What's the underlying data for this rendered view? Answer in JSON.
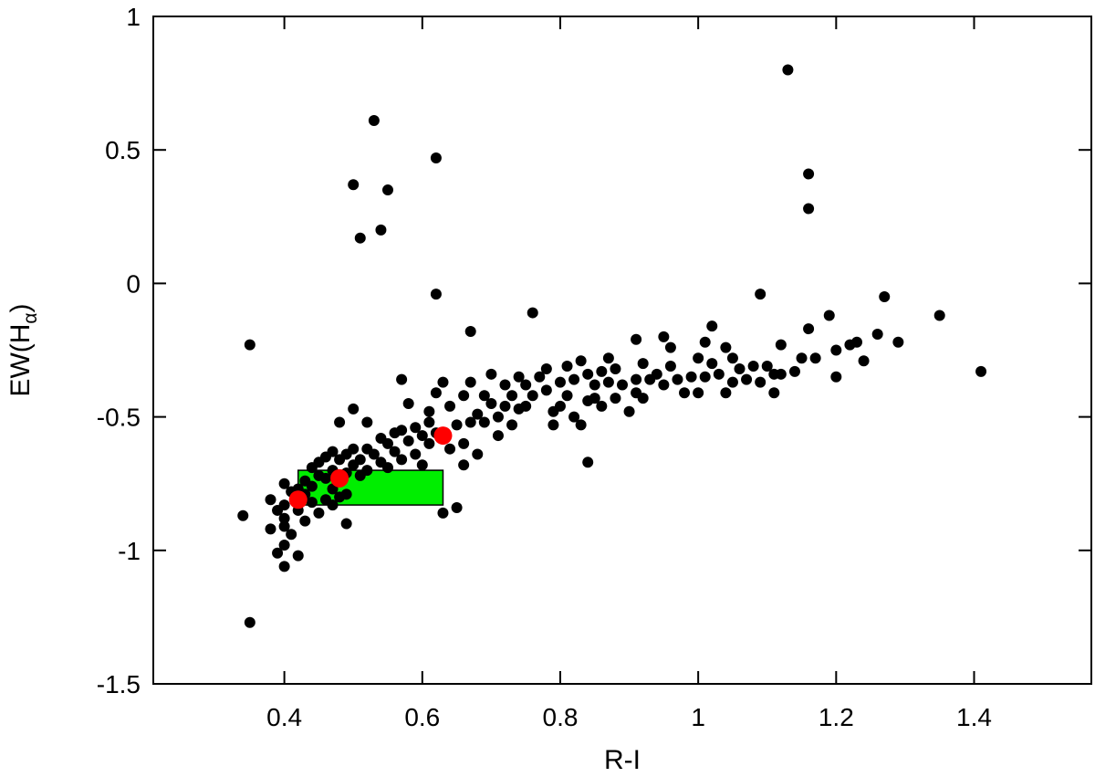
{
  "chart_data": {
    "type": "scatter",
    "title": "",
    "xlabel": "R-I",
    "ylabel": "EW(H",
    "ylabel_subscript": "α",
    "ylabel_suffix": ")",
    "xlim": [
      0.21,
      1.57
    ],
    "ylim": [
      -1.5,
      1.0
    ],
    "xticks": [
      0.4,
      0.6,
      0.8,
      1.0,
      1.2,
      1.4
    ],
    "xtick_labels": [
      "0.4",
      "0.6",
      "0.8",
      "1",
      "1.2",
      "1.4"
    ],
    "yticks": [
      -1.5,
      -1.0,
      -0.5,
      0.0,
      0.5,
      1.0
    ],
    "ytick_labels": [
      "-1.5",
      "-1",
      "-0.5",
      "0",
      "0.5",
      "1"
    ],
    "grid": false,
    "legend": "none",
    "colors": {
      "points": "#000000",
      "highlight": "#ff0000",
      "box_fill": "#00ee00",
      "box_edge": "#000000"
    },
    "region": {
      "x": [
        0.42,
        0.63
      ],
      "y": [
        -0.83,
        -0.7
      ]
    },
    "series": [
      {
        "values": [
          [
            0.34,
            -0.87
          ],
          [
            0.35,
            -0.23
          ],
          [
            0.35,
            -1.27
          ],
          [
            0.38,
            -0.81
          ],
          [
            0.38,
            -0.92
          ],
          [
            0.39,
            -0.85
          ],
          [
            0.39,
            -1.01
          ],
          [
            0.4,
            -0.75
          ],
          [
            0.4,
            -0.83
          ],
          [
            0.4,
            -0.88
          ],
          [
            0.4,
            -0.91
          ],
          [
            0.4,
            -0.98
          ],
          [
            0.4,
            -1.06
          ],
          [
            0.41,
            -0.78
          ],
          [
            0.41,
            -0.94
          ],
          [
            0.42,
            -0.77
          ],
          [
            0.42,
            -0.85
          ],
          [
            0.42,
            -1.02
          ],
          [
            0.43,
            -0.74
          ],
          [
            0.43,
            -0.79
          ],
          [
            0.43,
            -0.89
          ],
          [
            0.44,
            -0.69
          ],
          [
            0.44,
            -0.76
          ],
          [
            0.44,
            -0.82
          ],
          [
            0.45,
            -0.67
          ],
          [
            0.45,
            -0.72
          ],
          [
            0.45,
            -0.86
          ],
          [
            0.46,
            -0.65
          ],
          [
            0.46,
            -0.73
          ],
          [
            0.46,
            -0.81
          ],
          [
            0.47,
            -0.63
          ],
          [
            0.47,
            -0.7
          ],
          [
            0.47,
            -0.77
          ],
          [
            0.47,
            -0.83
          ],
          [
            0.48,
            -0.52
          ],
          [
            0.48,
            -0.66
          ],
          [
            0.48,
            -0.73
          ],
          [
            0.48,
            -0.8
          ],
          [
            0.49,
            -0.64
          ],
          [
            0.49,
            -0.71
          ],
          [
            0.49,
            -0.79
          ],
          [
            0.49,
            -0.9
          ],
          [
            0.5,
            -0.47
          ],
          [
            0.5,
            -0.62
          ],
          [
            0.5,
            -0.68
          ],
          [
            0.5,
            0.37
          ],
          [
            0.51,
            -0.66
          ],
          [
            0.51,
            -0.72
          ],
          [
            0.51,
            0.17
          ],
          [
            0.52,
            -0.52
          ],
          [
            0.52,
            -0.62
          ],
          [
            0.52,
            -0.7
          ],
          [
            0.53,
            -0.64
          ],
          [
            0.53,
            0.61
          ],
          [
            0.54,
            -0.58
          ],
          [
            0.54,
            -0.67
          ],
          [
            0.54,
            0.2
          ],
          [
            0.55,
            -0.6
          ],
          [
            0.55,
            -0.69
          ],
          [
            0.55,
            0.35
          ],
          [
            0.56,
            -0.56
          ],
          [
            0.56,
            -0.63
          ],
          [
            0.57,
            -0.36
          ],
          [
            0.57,
            -0.55
          ],
          [
            0.57,
            -0.66
          ],
          [
            0.58,
            -0.45
          ],
          [
            0.58,
            -0.59
          ],
          [
            0.59,
            -0.54
          ],
          [
            0.59,
            -0.64
          ],
          [
            0.6,
            -0.57
          ],
          [
            0.6,
            -0.68
          ],
          [
            0.61,
            -0.48
          ],
          [
            0.61,
            -0.52
          ],
          [
            0.61,
            -0.6
          ],
          [
            0.62,
            -0.41
          ],
          [
            0.62,
            -0.56
          ],
          [
            0.62,
            -0.04
          ],
          [
            0.62,
            0.47
          ],
          [
            0.63,
            -0.37
          ],
          [
            0.63,
            -0.86
          ],
          [
            0.64,
            -0.46
          ],
          [
            0.64,
            -0.62
          ],
          [
            0.65,
            -0.84
          ],
          [
            0.65,
            -0.53
          ],
          [
            0.66,
            -0.42
          ],
          [
            0.66,
            -0.6
          ],
          [
            0.66,
            -0.68
          ],
          [
            0.67,
            -0.37
          ],
          [
            0.67,
            -0.52
          ],
          [
            0.67,
            -0.18
          ],
          [
            0.68,
            -0.49
          ],
          [
            0.68,
            -0.64
          ],
          [
            0.69,
            -0.42
          ],
          [
            0.69,
            -0.52
          ],
          [
            0.7,
            -0.34
          ],
          [
            0.7,
            -0.45
          ],
          [
            0.71,
            -0.5
          ],
          [
            0.71,
            -0.57
          ],
          [
            0.72,
            -0.38
          ],
          [
            0.72,
            -0.46
          ],
          [
            0.73,
            -0.42
          ],
          [
            0.73,
            -0.53
          ],
          [
            0.74,
            -0.35
          ],
          [
            0.74,
            -0.47
          ],
          [
            0.75,
            -0.38
          ],
          [
            0.75,
            -0.46
          ],
          [
            0.76,
            -0.42
          ],
          [
            0.76,
            -0.11
          ],
          [
            0.77,
            -0.35
          ],
          [
            0.78,
            -0.32
          ],
          [
            0.78,
            -0.4
          ],
          [
            0.79,
            -0.48
          ],
          [
            0.79,
            -0.53
          ],
          [
            0.8,
            -0.37
          ],
          [
            0.8,
            -0.46
          ],
          [
            0.81,
            -0.31
          ],
          [
            0.81,
            -0.42
          ],
          [
            0.82,
            -0.36
          ],
          [
            0.82,
            -0.5
          ],
          [
            0.83,
            -0.29
          ],
          [
            0.83,
            -0.53
          ],
          [
            0.84,
            -0.34
          ],
          [
            0.84,
            -0.44
          ],
          [
            0.84,
            -0.67
          ],
          [
            0.85,
            -0.38
          ],
          [
            0.85,
            -0.43
          ],
          [
            0.86,
            -0.33
          ],
          [
            0.86,
            -0.46
          ],
          [
            0.87,
            -0.28
          ],
          [
            0.87,
            -0.37
          ],
          [
            0.88,
            -0.32
          ],
          [
            0.88,
            -0.43
          ],
          [
            0.89,
            -0.38
          ],
          [
            0.9,
            -0.48
          ],
          [
            0.91,
            -0.21
          ],
          [
            0.91,
            -0.36
          ],
          [
            0.91,
            -0.41
          ],
          [
            0.92,
            -0.3
          ],
          [
            0.92,
            -0.43
          ],
          [
            0.93,
            -0.36
          ],
          [
            0.94,
            -0.34
          ],
          [
            0.95,
            -0.2
          ],
          [
            0.95,
            -0.38
          ],
          [
            0.96,
            -0.24
          ],
          [
            0.96,
            -0.31
          ],
          [
            0.97,
            -0.36
          ],
          [
            0.98,
            -0.41
          ],
          [
            0.99,
            -0.35
          ],
          [
            1.0,
            -0.28
          ],
          [
            1.0,
            -0.41
          ],
          [
            1.01,
            -0.22
          ],
          [
            1.01,
            -0.35
          ],
          [
            1.02,
            -0.16
          ],
          [
            1.02,
            -0.3
          ],
          [
            1.03,
            -0.34
          ],
          [
            1.04,
            -0.24
          ],
          [
            1.04,
            -0.41
          ],
          [
            1.05,
            -0.28
          ],
          [
            1.05,
            -0.37
          ],
          [
            1.06,
            -0.32
          ],
          [
            1.07,
            -0.36
          ],
          [
            1.08,
            -0.31
          ],
          [
            1.09,
            -0.04
          ],
          [
            1.09,
            -0.37
          ],
          [
            1.1,
            -0.31
          ],
          [
            1.11,
            -0.34
          ],
          [
            1.11,
            -0.41
          ],
          [
            1.12,
            -0.23
          ],
          [
            1.12,
            -0.34
          ],
          [
            1.13,
            0.8
          ],
          [
            1.14,
            -0.33
          ],
          [
            1.15,
            -0.28
          ],
          [
            1.16,
            -0.17
          ],
          [
            1.16,
            0.28
          ],
          [
            1.16,
            0.41
          ],
          [
            1.17,
            -0.28
          ],
          [
            1.19,
            -0.12
          ],
          [
            1.2,
            -0.25
          ],
          [
            1.2,
            -0.35
          ],
          [
            1.22,
            -0.23
          ],
          [
            1.23,
            -0.22
          ],
          [
            1.24,
            -0.29
          ],
          [
            1.26,
            -0.19
          ],
          [
            1.27,
            -0.05
          ],
          [
            1.29,
            -0.22
          ],
          [
            1.35,
            -0.12
          ],
          [
            1.41,
            -0.33
          ]
        ]
      },
      {
        "values": [
          [
            0.42,
            -0.81
          ],
          [
            0.48,
            -0.73
          ],
          [
            0.63,
            -0.57
          ]
        ]
      }
    ]
  }
}
